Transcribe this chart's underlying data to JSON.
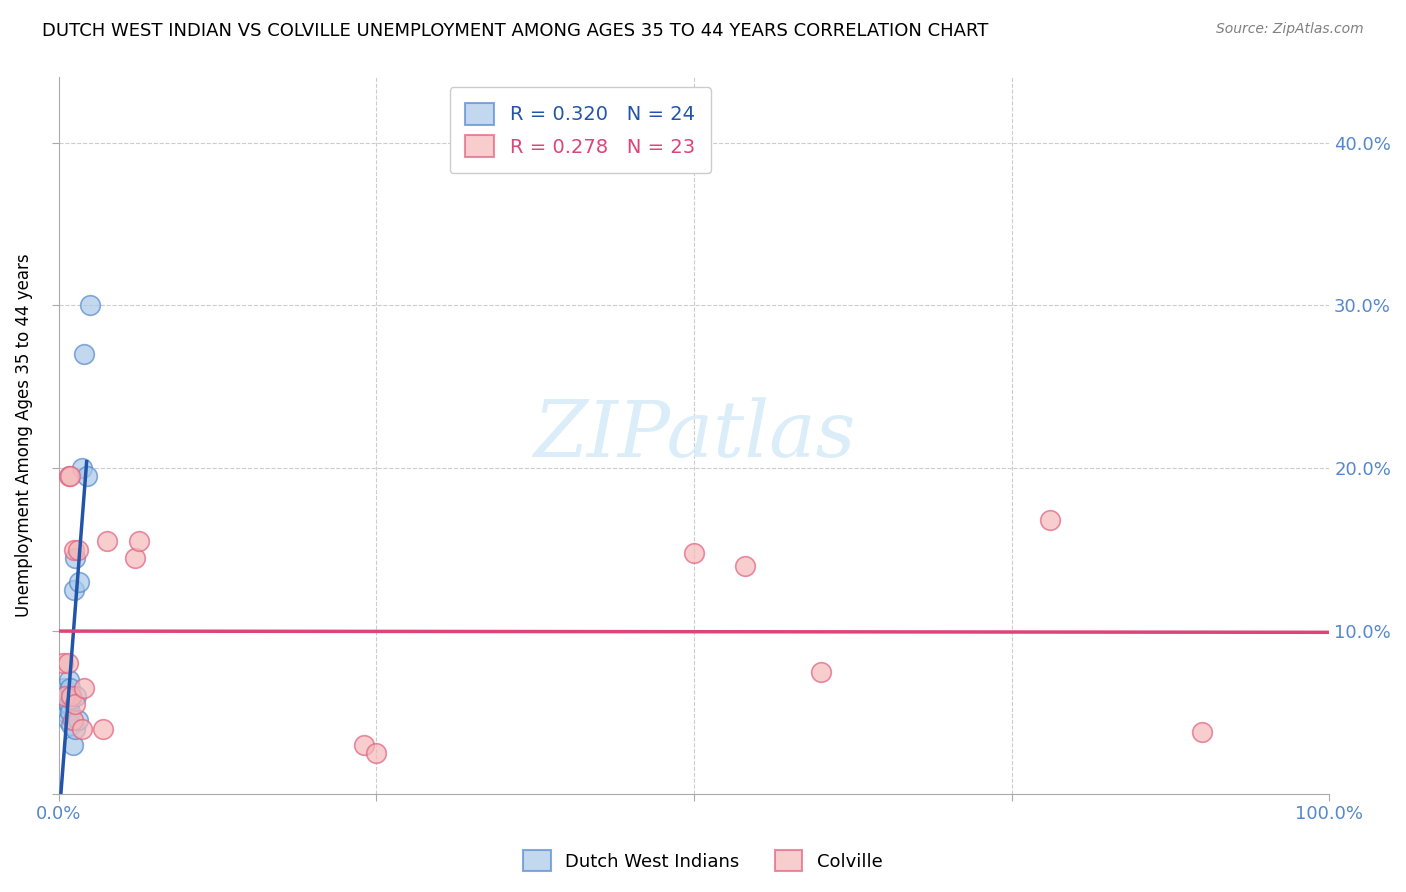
{
  "title": "DUTCH WEST INDIAN VS COLVILLE UNEMPLOYMENT AMONG AGES 35 TO 44 YEARS CORRELATION CHART",
  "source": "Source: ZipAtlas.com",
  "ylabel": "Unemployment Among Ages 35 to 44 years",
  "xlim": [
    0.0,
    1.0
  ],
  "ylim": [
    0.0,
    0.44
  ],
  "xticks": [
    0.0,
    0.25,
    0.5,
    0.75,
    1.0
  ],
  "xtick_labels": [
    "0.0%",
    "",
    "",
    "",
    "100.0%"
  ],
  "yticks": [
    0.0,
    0.1,
    0.2,
    0.3,
    0.4
  ],
  "ytick_labels_right": [
    "",
    "10.0%",
    "20.0%",
    "30.0%",
    "40.0%"
  ],
  "blue_R": 0.32,
  "blue_N": 24,
  "pink_R": 0.278,
  "pink_N": 23,
  "blue_color": "#a8c8e8",
  "pink_color": "#f4b8b8",
  "blue_edge_color": "#5588cc",
  "pink_edge_color": "#e06080",
  "trendline_blue_color": "#2255aa",
  "trendline_pink_color": "#dd4477",
  "grid_color": "#cccccc",
  "tick_color": "#5588cc",
  "watermark_color": "#d8ecf8",
  "blue_points_x": [
    0.002,
    0.003,
    0.004,
    0.005,
    0.006,
    0.007,
    0.007,
    0.008,
    0.008,
    0.009,
    0.009,
    0.01,
    0.01,
    0.011,
    0.012,
    0.013,
    0.013,
    0.014,
    0.015,
    0.016,
    0.018,
    0.02,
    0.022,
    0.025
  ],
  "blue_points_y": [
    0.06,
    0.055,
    0.065,
    0.05,
    0.06,
    0.055,
    0.045,
    0.07,
    0.055,
    0.065,
    0.05,
    0.058,
    0.042,
    0.03,
    0.125,
    0.145,
    0.04,
    0.06,
    0.045,
    0.13,
    0.2,
    0.27,
    0.195,
    0.3
  ],
  "pink_points_x": [
    0.003,
    0.005,
    0.007,
    0.008,
    0.009,
    0.01,
    0.011,
    0.012,
    0.013,
    0.015,
    0.018,
    0.02,
    0.035,
    0.038,
    0.06,
    0.063,
    0.24,
    0.25,
    0.5,
    0.54,
    0.6,
    0.78,
    0.9
  ],
  "pink_points_y": [
    0.08,
    0.06,
    0.08,
    0.195,
    0.195,
    0.06,
    0.045,
    0.15,
    0.055,
    0.15,
    0.04,
    0.065,
    0.04,
    0.155,
    0.145,
    0.155,
    0.03,
    0.025,
    0.148,
    0.14,
    0.075,
    0.168,
    0.038
  ],
  "blue_trendline_x1": 0.0,
  "blue_trendline_x2": 0.022,
  "pink_trendline_x1": 0.0,
  "pink_trendline_x2": 1.0
}
